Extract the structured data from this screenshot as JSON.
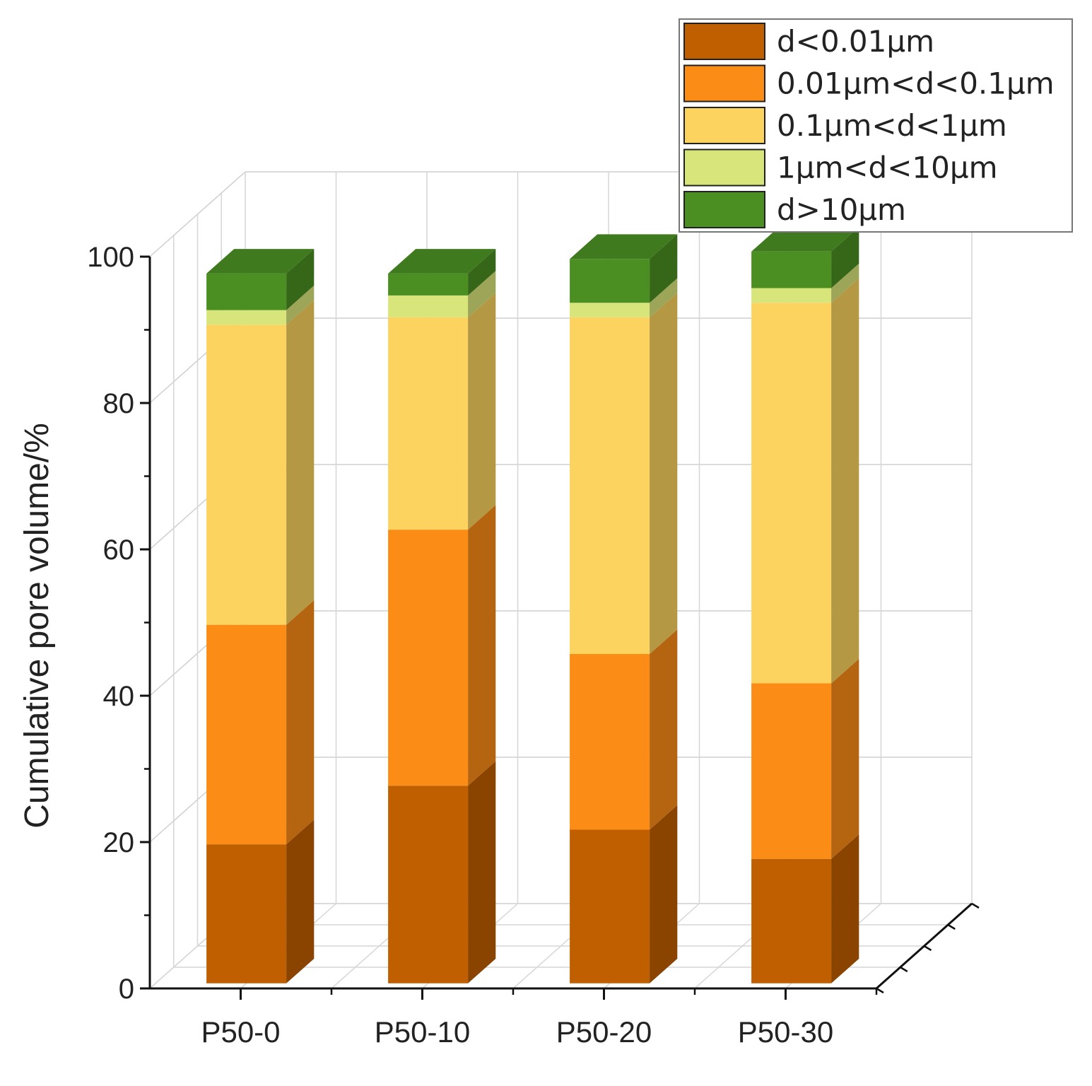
{
  "chart_data": {
    "type": "bar",
    "subtype": "stacked-3d",
    "title": "",
    "xlabel": "",
    "ylabel": "Cumulative pore volume/%",
    "ylim": [
      0,
      100
    ],
    "yticks": [
      0,
      20,
      40,
      60,
      80,
      100
    ],
    "yticks_text": [
      "0",
      "20",
      "40",
      "60",
      "80",
      "100"
    ],
    "grid": true,
    "legend_position": "top-right",
    "categories": [
      "P50-0",
      "P50-10",
      "P50-20",
      "P50-30"
    ],
    "series": [
      {
        "name": "d<0.01μm",
        "color": "#c05f00",
        "values": [
          19,
          27,
          21,
          17
        ]
      },
      {
        "name": "0.01μm<d<0.1μm",
        "color": "#fb8c16",
        "values": [
          30,
          35,
          24,
          24
        ]
      },
      {
        "name": "0.1μm<d<1μm",
        "color": "#fcd35f",
        "values": [
          41,
          29,
          46,
          52
        ]
      },
      {
        "name": "1μm<d<10μm",
        "color": "#d8e57a",
        "values": [
          2,
          3,
          2,
          2
        ]
      },
      {
        "name": "d>10μm",
        "color": "#4b8f23",
        "values": [
          5,
          3,
          6,
          5
        ]
      }
    ]
  }
}
